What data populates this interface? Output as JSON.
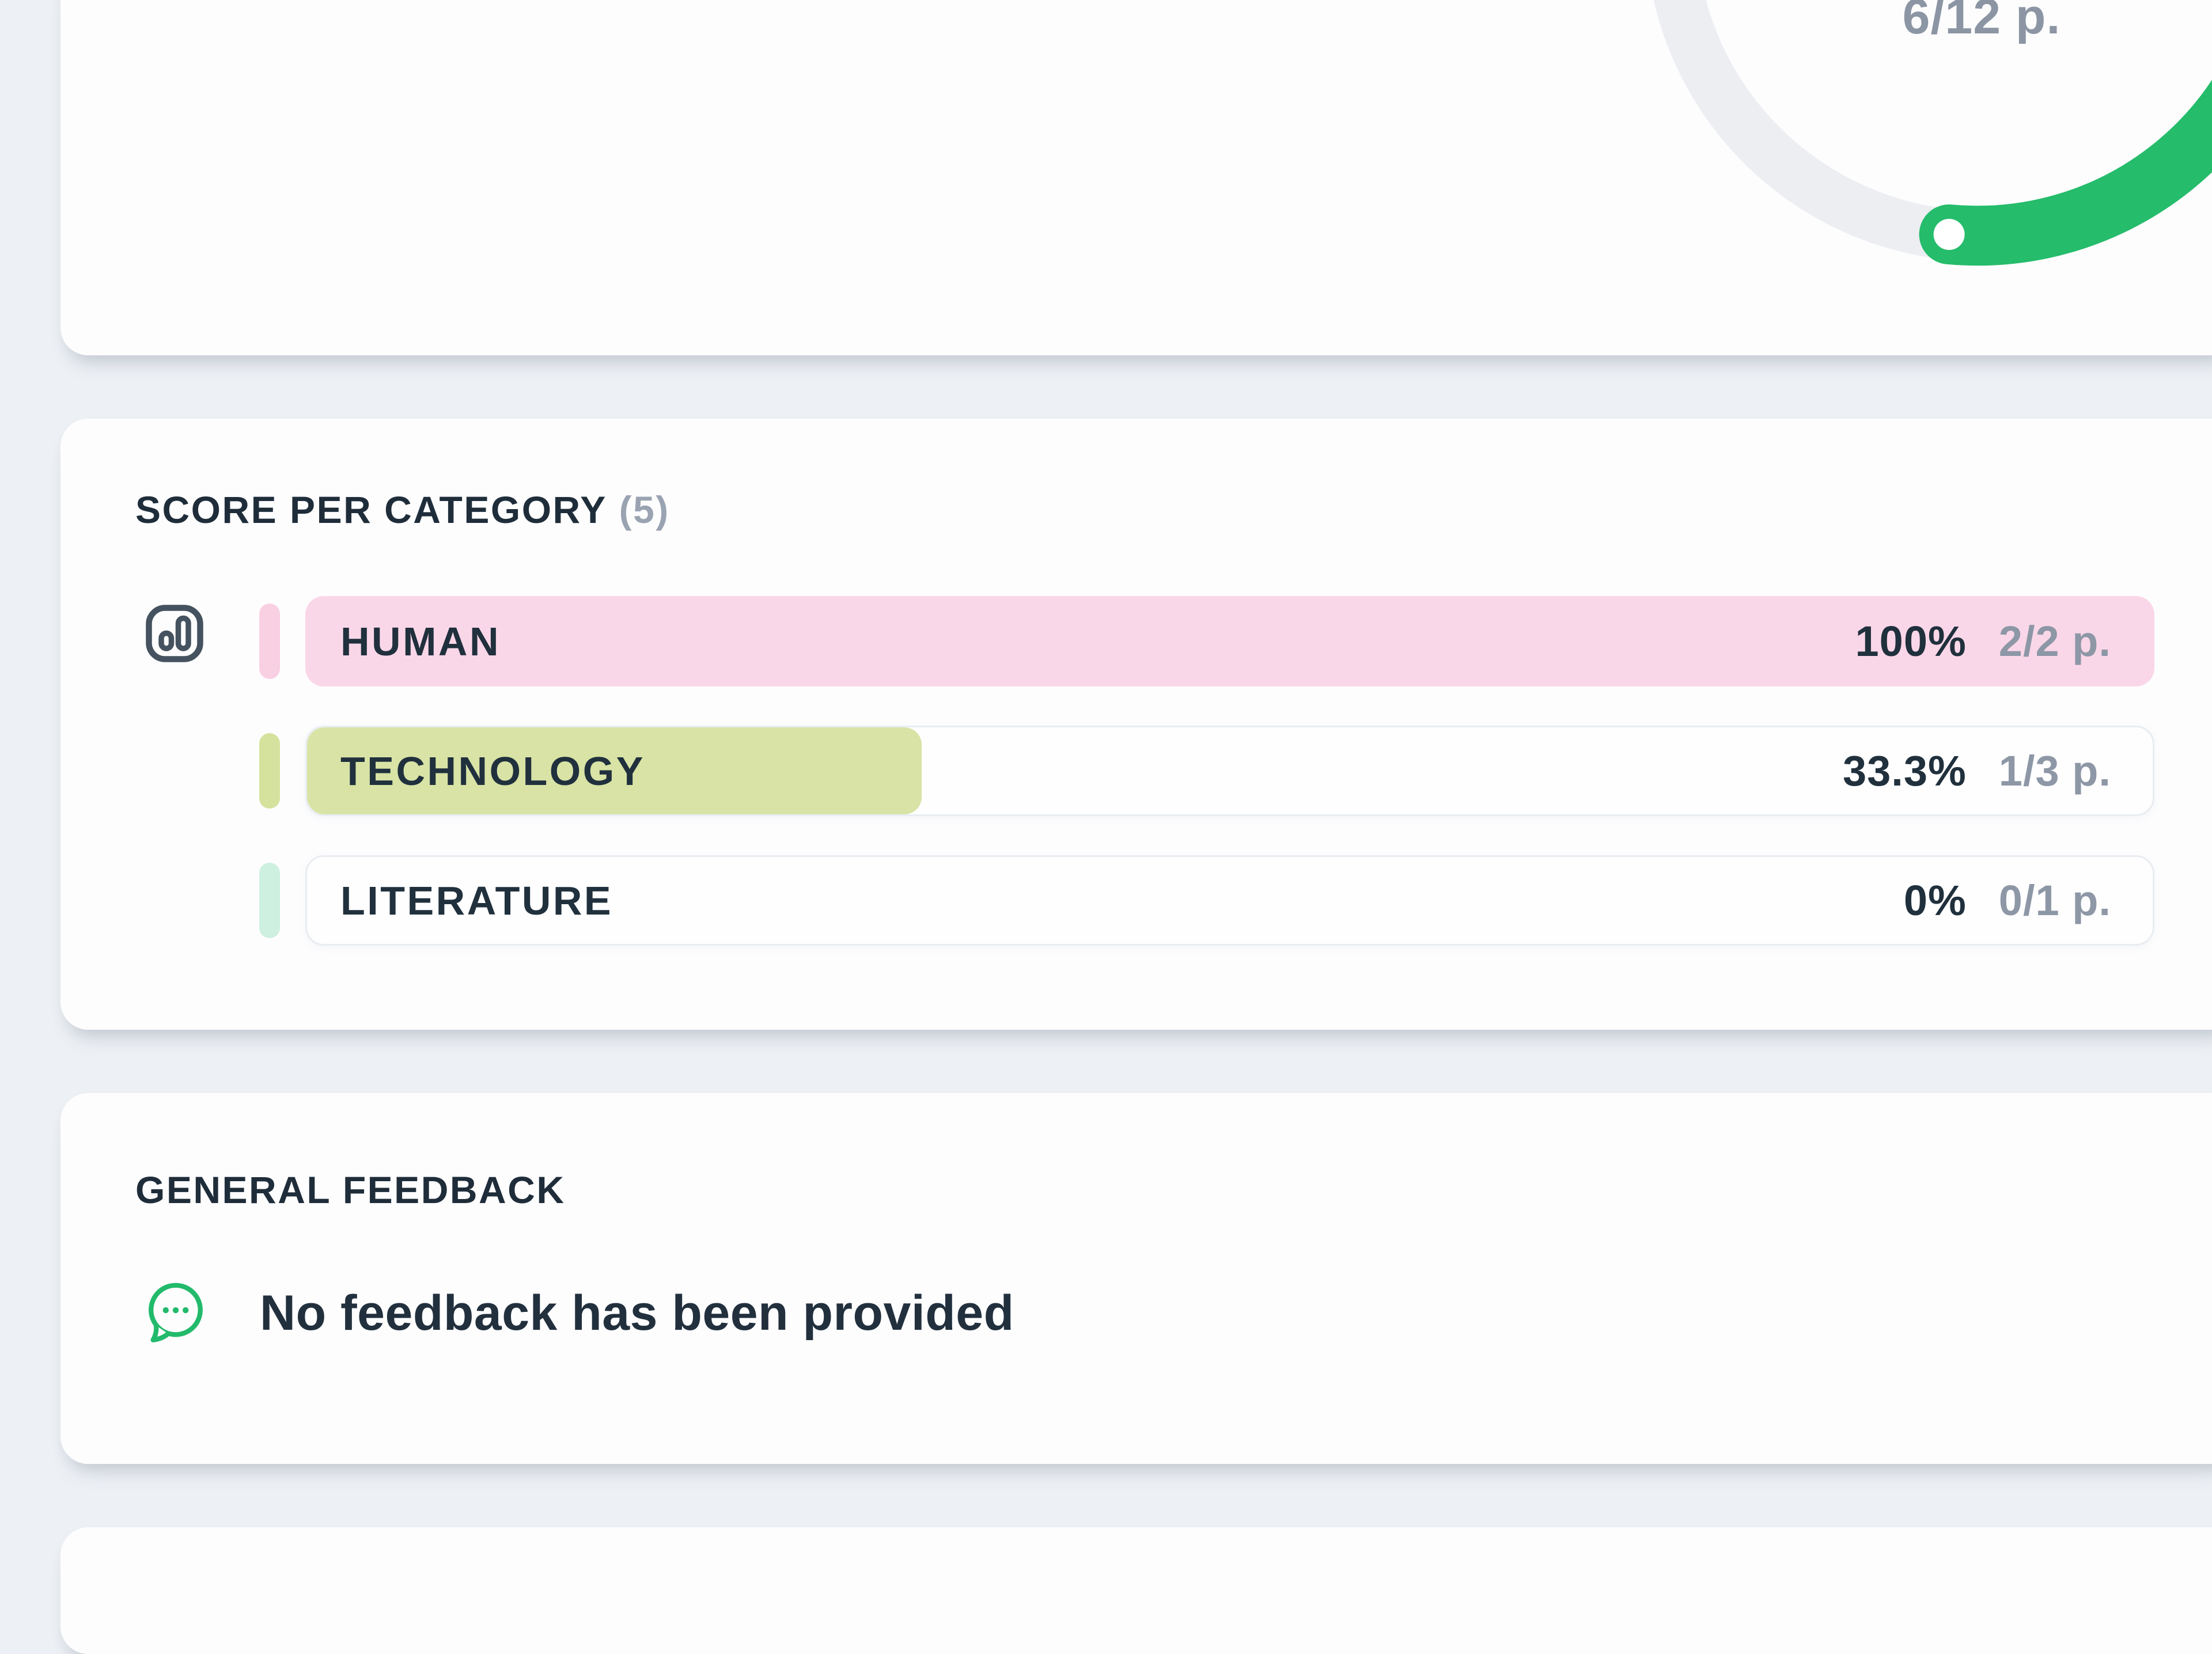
{
  "summary_card": {
    "gauge": {
      "score_label": "6/12 p.",
      "percent": 50,
      "arc_color": "#25bc6b",
      "track_color": "#eceef2"
    }
  },
  "score_card": {
    "title": "SCORE PER CATEGORY",
    "count_badge": "(5)",
    "categories": [
      {
        "label": "HUMAN",
        "percent_label": "100%",
        "points_label": "2/2 p.",
        "percent_value": 100,
        "fill_color": "#fad7e8",
        "tick_color": "#f9cfe2"
      },
      {
        "label": "TECHNOLOGY",
        "percent_label": "33.3%",
        "points_label": "1/3 p.",
        "percent_value": 33.3,
        "fill_color": "#d8e3a5",
        "tick_color": "#d5e29d"
      },
      {
        "label": "LITERATURE",
        "percent_label": "0%",
        "points_label": "0/1 p.",
        "percent_value": 0,
        "fill_color": "#cdf0e0",
        "tick_color": "#cdf0e0"
      }
    ]
  },
  "feedback_card": {
    "title": "GENERAL FEEDBACK",
    "empty_message": "No feedback has been provided",
    "icon_color": "#22ba6b"
  }
}
